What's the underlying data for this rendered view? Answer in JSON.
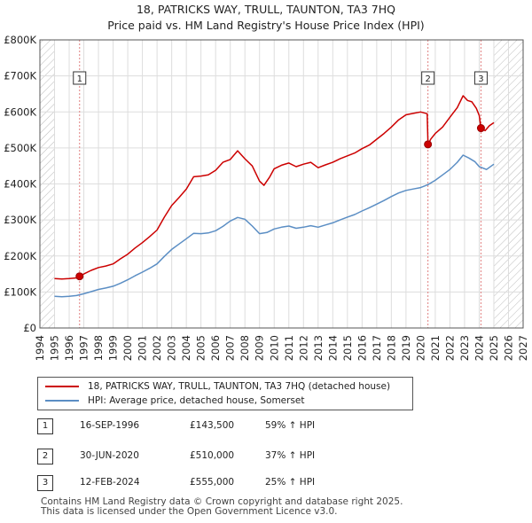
{
  "title_line1": "18, PATRICKS WAY, TRULL, TAUNTON, TA3 7HQ",
  "title_line2": "Price paid vs. HM Land Registry's House Price Index (HPI)",
  "colors": {
    "property": "#cc0000",
    "hpi": "#5b8ec4",
    "grid": "#dddddd",
    "marker_line": "#e08080",
    "hatch": "#bbbbbb"
  },
  "chart_data": {
    "type": "line",
    "title": "Price paid vs. HM Land Registry's House Price Index (HPI)",
    "xlabel": "",
    "ylabel": "",
    "xlim": [
      1994,
      2027
    ],
    "ylim": [
      0,
      800000
    ],
    "x_ticks": [
      1994,
      1995,
      1996,
      1997,
      1998,
      1999,
      2000,
      2001,
      2002,
      2003,
      2004,
      2005,
      2006,
      2007,
      2008,
      2009,
      2010,
      2011,
      2012,
      2013,
      2014,
      2015,
      2016,
      2017,
      2018,
      2019,
      2020,
      2021,
      2022,
      2023,
      2024,
      2025,
      2026,
      2027
    ],
    "y_ticks": [
      {
        "value": 0,
        "label": "£0"
      },
      {
        "value": 100000,
        "label": "£100K"
      },
      {
        "value": 200000,
        "label": "£200K"
      },
      {
        "value": 300000,
        "label": "£300K"
      },
      {
        "value": 400000,
        "label": "£400K"
      },
      {
        "value": 500000,
        "label": "£500K"
      },
      {
        "value": 600000,
        "label": "£600K"
      },
      {
        "value": 700000,
        "label": "£700K"
      },
      {
        "value": 800000,
        "label": "£800K"
      }
    ],
    "grid": true,
    "data_range_hatched": {
      "before": 1995,
      "after": 2025
    },
    "series": [
      {
        "name": "18, PATRICKS WAY, TRULL, TAUNTON, TA3 7HQ (detached house)",
        "color": "#cc0000",
        "x": [
          1995.0,
          1995.5,
          1996.0,
          1996.5,
          1996.71,
          1997.0,
          1997.5,
          1998.0,
          1998.5,
          1999.0,
          1999.5,
          2000.0,
          2000.5,
          2001.0,
          2001.5,
          2002.0,
          2002.5,
          2003.0,
          2003.5,
          2004.0,
          2004.5,
          2005.0,
          2005.5,
          2006.0,
          2006.5,
          2007.0,
          2007.5,
          2008.0,
          2008.5,
          2009.0,
          2009.3,
          2009.7,
          2010.0,
          2010.5,
          2011.0,
          2011.5,
          2012.0,
          2012.5,
          2013.0,
          2013.5,
          2014.0,
          2014.5,
          2015.0,
          2015.5,
          2016.0,
          2016.5,
          2017.0,
          2017.5,
          2018.0,
          2018.5,
          2019.0,
          2019.5,
          2020.0,
          2020.45,
          2020.5,
          2020.7,
          2021.0,
          2021.5,
          2022.0,
          2022.5,
          2022.9,
          2023.2,
          2023.5,
          2023.8,
          2024.0,
          2024.12,
          2024.4,
          2024.7,
          2025.0
        ],
        "values": [
          137000,
          136000,
          137000,
          139000,
          143500,
          150000,
          160000,
          168000,
          172000,
          178000,
          192000,
          205000,
          222000,
          237000,
          254000,
          272000,
          308000,
          340000,
          362000,
          386000,
          420000,
          422000,
          425000,
          438000,
          460000,
          468000,
          492000,
          470000,
          450000,
          408000,
          396000,
          420000,
          442000,
          452000,
          458000,
          448000,
          455000,
          460000,
          445000,
          453000,
          460000,
          470000,
          478000,
          486000,
          498000,
          508000,
          524000,
          540000,
          558000,
          578000,
          592000,
          596000,
          600000,
          595000,
          510000,
          525000,
          540000,
          558000,
          585000,
          612000,
          645000,
          632000,
          628000,
          610000,
          590000,
          555000,
          548000,
          562000,
          570000
        ]
      },
      {
        "name": "HPI: Average price, detached house, Somerset",
        "color": "#5b8ec4",
        "x": [
          1995.0,
          1995.5,
          1996.0,
          1996.5,
          1997.0,
          1997.5,
          1998.0,
          1998.5,
          1999.0,
          1999.5,
          2000.0,
          2000.5,
          2001.0,
          2001.5,
          2002.0,
          2002.5,
          2003.0,
          2003.5,
          2004.0,
          2004.5,
          2005.0,
          2005.5,
          2006.0,
          2006.5,
          2007.0,
          2007.5,
          2008.0,
          2008.5,
          2009.0,
          2009.5,
          2010.0,
          2010.5,
          2011.0,
          2011.5,
          2012.0,
          2012.5,
          2013.0,
          2013.5,
          2014.0,
          2014.5,
          2015.0,
          2015.5,
          2016.0,
          2016.5,
          2017.0,
          2017.5,
          2018.0,
          2018.5,
          2019.0,
          2019.5,
          2020.0,
          2020.5,
          2021.0,
          2021.5,
          2022.0,
          2022.5,
          2022.9,
          2023.3,
          2023.7,
          2024.0,
          2024.5,
          2025.0
        ],
        "values": [
          88000,
          87000,
          88000,
          90000,
          95000,
          101000,
          107000,
          111000,
          116000,
          124000,
          134000,
          145000,
          155000,
          166000,
          178000,
          199000,
          218000,
          233000,
          248000,
          263000,
          262000,
          264000,
          270000,
          282000,
          297000,
          307000,
          302000,
          283000,
          262000,
          265000,
          275000,
          280000,
          283000,
          277000,
          280000,
          284000,
          280000,
          286000,
          292000,
          300000,
          308000,
          315000,
          325000,
          334000,
          344000,
          354000,
          365000,
          375000,
          382000,
          386000,
          390000,
          398000,
          410000,
          425000,
          440000,
          460000,
          480000,
          472000,
          462000,
          448000,
          440000,
          455000
        ]
      }
    ],
    "sale_markers": [
      {
        "id": "1",
        "x": 1996.71,
        "value": 143500
      },
      {
        "id": "2",
        "x": 2020.5,
        "value": 510000
      },
      {
        "id": "3",
        "x": 2024.12,
        "value": 555000
      }
    ]
  },
  "legend": {
    "property_label": "18, PATRICKS WAY, TRULL, TAUNTON, TA3 7HQ (detached house)",
    "hpi_label": "HPI: Average price, detached house, Somerset"
  },
  "sales": [
    {
      "id": "1",
      "date": "16-SEP-1996",
      "price": "£143,500",
      "hpi": "59% ↑ HPI"
    },
    {
      "id": "2",
      "date": "30-JUN-2020",
      "price": "£510,000",
      "hpi": "37% ↑ HPI"
    },
    {
      "id": "3",
      "date": "12-FEB-2024",
      "price": "£555,000",
      "hpi": "25% ↑ HPI"
    }
  ],
  "footer": {
    "line1": "Contains HM Land Registry data © Crown copyright and database right 2025.",
    "line2": "This data is licensed under the Open Government Licence v3.0."
  }
}
